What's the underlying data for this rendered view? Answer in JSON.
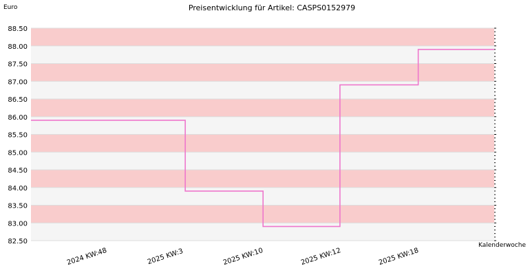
{
  "chart_data": {
    "type": "line",
    "title": "Preisentwicklung für Artikel: CASPS0152979",
    "ylabel": "Euro",
    "xlabel": "Kalenderwoche",
    "ylim": [
      82.5,
      88.5
    ],
    "y_ticks": [
      "82.50",
      "83.00",
      "83.50",
      "84.00",
      "84.50",
      "85.00",
      "85.50",
      "86.00",
      "86.50",
      "87.00",
      "87.50",
      "88.00",
      "88.50"
    ],
    "x_ticks": [
      "2024 KW:48",
      "2025 KW:3",
      "2025 KW:10",
      "2025 KW:12",
      "2025 KW:18"
    ],
    "grid": true,
    "band_colors": [
      "#f9cccc",
      "#f5f5f5"
    ],
    "series": [
      {
        "color": "#ee77cc",
        "step": true,
        "points": [
          {
            "x": "2024 KW:48",
            "y": 85.9
          },
          {
            "x": "2025 KW:3",
            "y": 83.9
          },
          {
            "x": "2025 KW:10",
            "y": 82.9
          },
          {
            "x": "2025 KW:12",
            "y": 86.9
          },
          {
            "x": "2025 KW:18",
            "y": 87.9
          }
        ]
      }
    ]
  }
}
